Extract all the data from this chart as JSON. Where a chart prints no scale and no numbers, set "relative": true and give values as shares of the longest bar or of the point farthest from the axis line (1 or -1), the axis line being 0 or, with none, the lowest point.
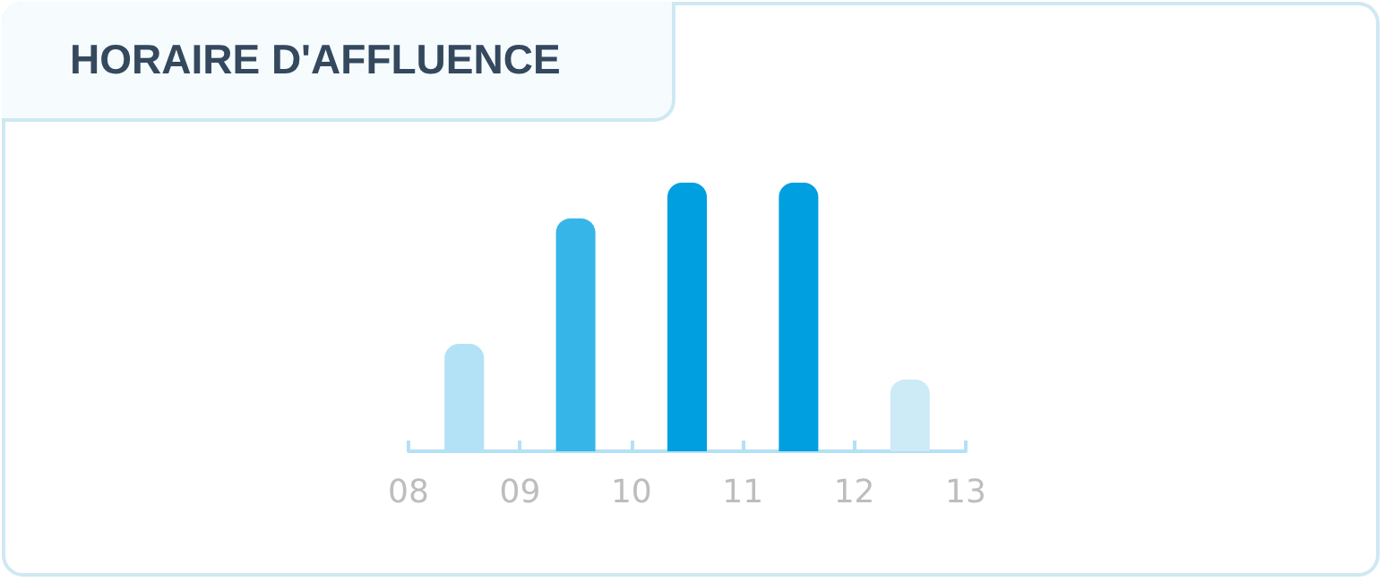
{
  "chart_data": {
    "type": "bar",
    "title": "HORAIRE D'AFFLUENCE",
    "relative": true,
    "x": [
      8.5,
      9.5,
      10.5,
      11.5,
      12.5
    ],
    "values": [
      0.4,
      0.867,
      1,
      1,
      0.267
    ],
    "colors": [
      "#b3e1f5",
      "#36b5e8",
      "#009fe0",
      "#009fe0",
      "#cdeaf7"
    ],
    "xlim": [
      8,
      13
    ],
    "xticks": [
      {
        "value": 8,
        "label": "08"
      },
      {
        "value": 9,
        "label": "09"
      },
      {
        "value": 10,
        "label": "10"
      },
      {
        "value": 11,
        "label": "11"
      },
      {
        "value": 12,
        "label": "12"
      },
      {
        "value": 13,
        "label": "13"
      }
    ],
    "grid": false
  }
}
